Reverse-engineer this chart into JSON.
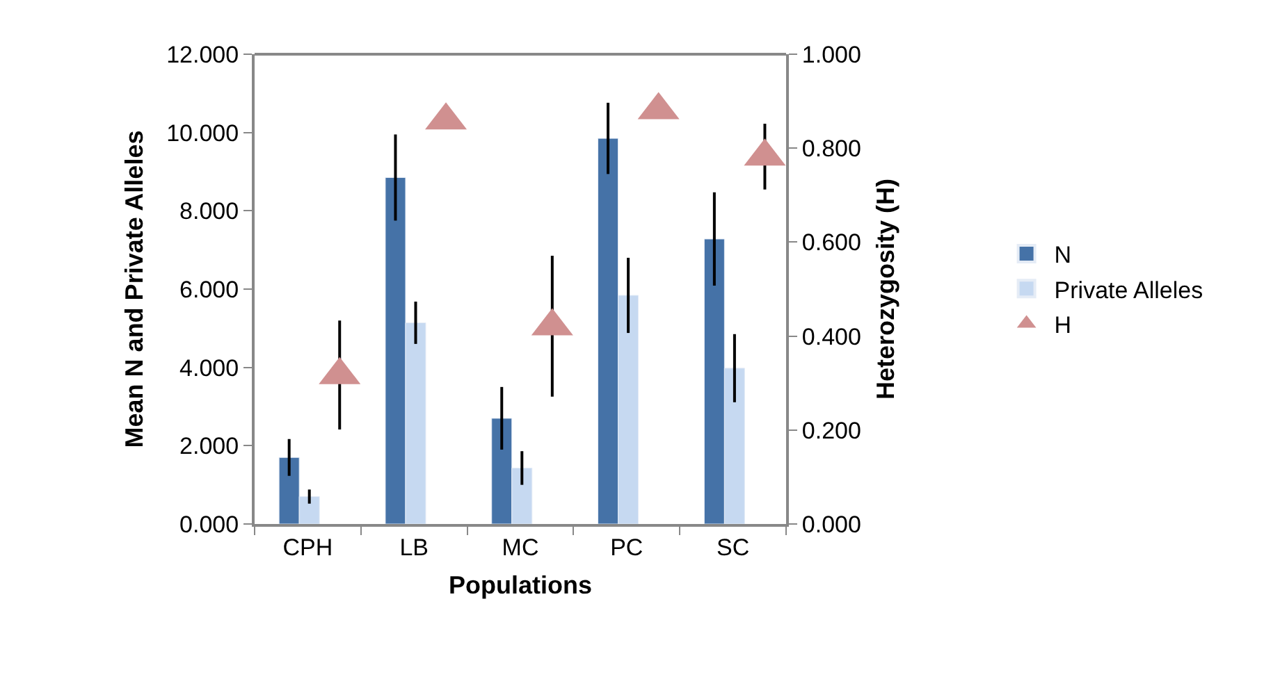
{
  "chart_data": {
    "type": "bar",
    "xlabel": "Populations",
    "ylabel": "Mean N and Private Alleles",
    "y2label": "Heterozygosity (H)",
    "categories": [
      "CPH",
      "LB",
      "MC",
      "PC",
      "SC"
    ],
    "series": [
      {
        "name": "N",
        "color": "#4572a7",
        "values": [
          1.7,
          8.85,
          2.7,
          9.85,
          7.28
        ],
        "errors": [
          0.47,
          1.1,
          0.8,
          0.91,
          1.19
        ]
      },
      {
        "name": "Private Alleles",
        "color": "#c6d9f1",
        "values": [
          0.7,
          5.14,
          1.43,
          5.84,
          3.98
        ],
        "errors": [
          0.18,
          0.54,
          0.43,
          0.96,
          0.87
        ]
      },
      {
        "name": "H",
        "type": "scatter",
        "axis": "y2",
        "marker": "triangle",
        "color": "#d09090",
        "values": [
          0.317,
          0.859,
          0.421,
          0.881,
          0.782
        ],
        "errors": [
          0.116,
          null,
          0.15,
          null,
          0.07
        ]
      }
    ],
    "ylim": [
      0,
      12
    ],
    "yticks": [
      {
        "value": 0,
        "label": "0.000"
      },
      {
        "value": 2,
        "label": "2.000"
      },
      {
        "value": 4,
        "label": "4.000"
      },
      {
        "value": 6,
        "label": "6.000"
      },
      {
        "value": 8,
        "label": "8.000"
      },
      {
        "value": 10,
        "label": "10.000"
      },
      {
        "value": 12,
        "label": "12.000"
      }
    ],
    "y2lim": [
      0,
      1
    ],
    "y2ticks": [
      {
        "value": 0,
        "label": "0.000"
      },
      {
        "value": 0.2,
        "label": "0.200"
      },
      {
        "value": 0.4,
        "label": "0.400"
      },
      {
        "value": 0.6,
        "label": "0.600"
      },
      {
        "value": 0.8,
        "label": "0.800"
      },
      {
        "value": 1,
        "label": "1.000"
      }
    ],
    "legend": "right"
  }
}
